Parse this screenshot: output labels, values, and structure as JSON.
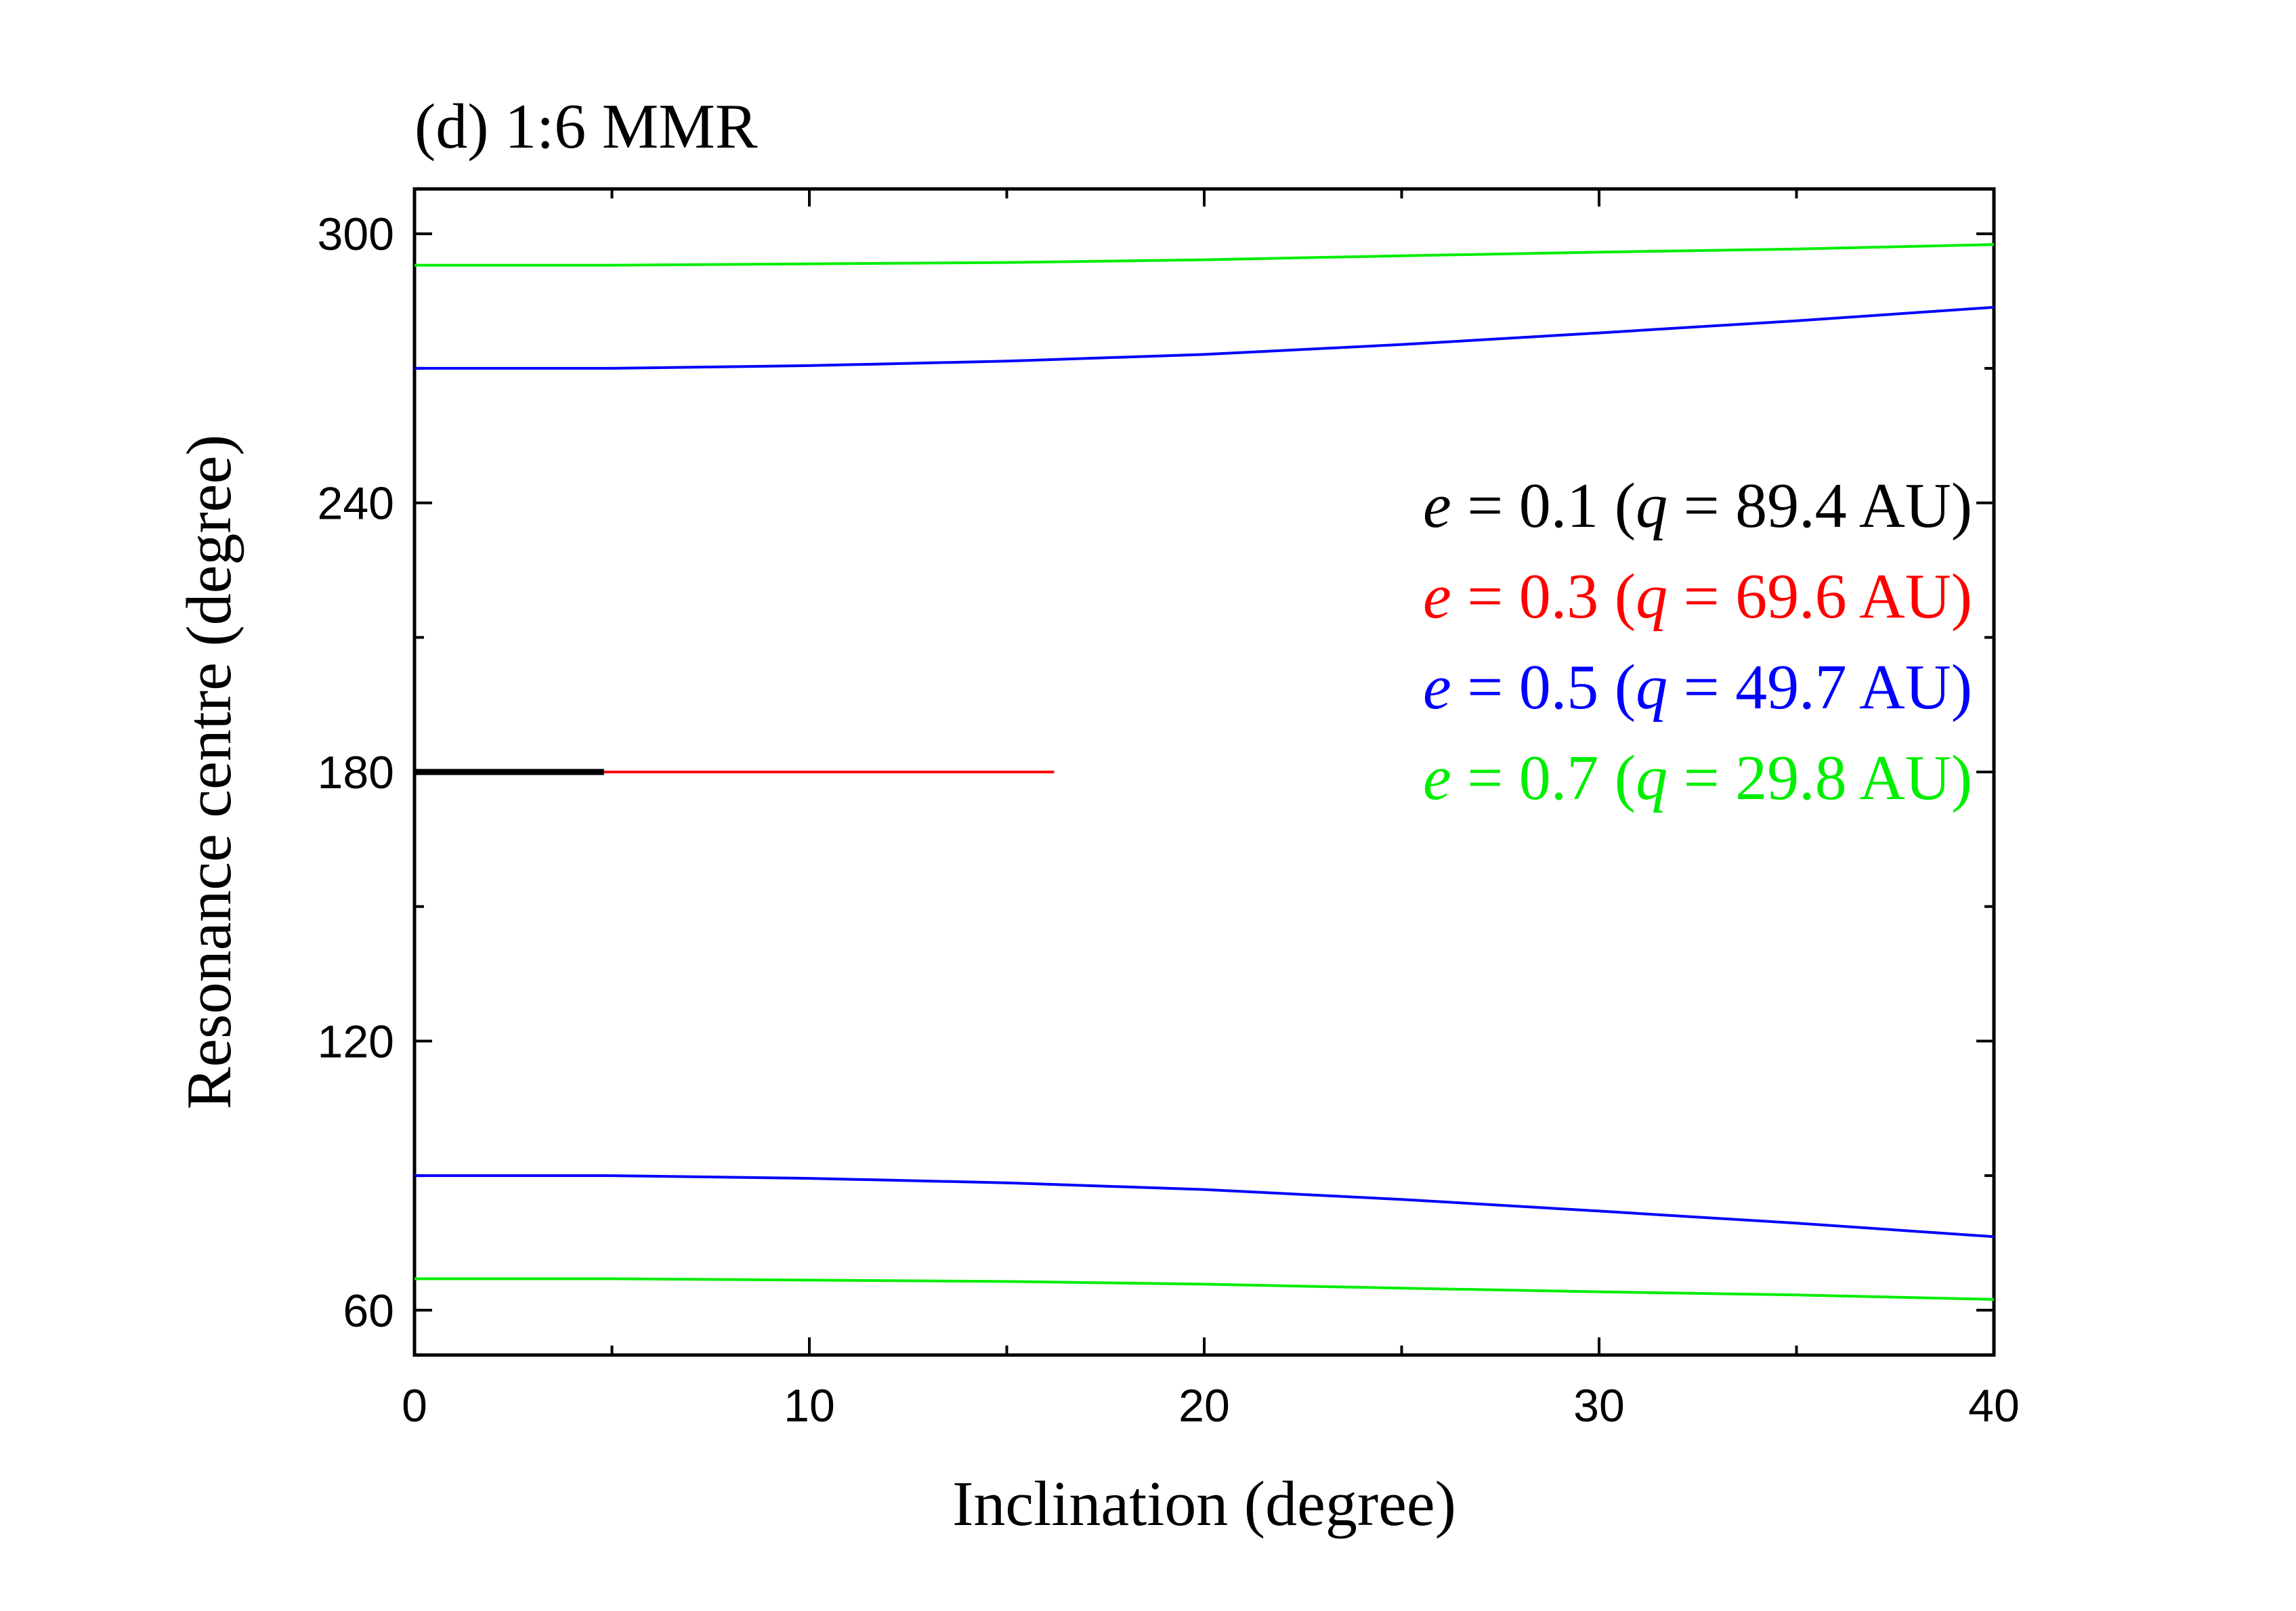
{
  "chart_data": {
    "type": "line",
    "title": "(d) 1:6 MMR",
    "xlabel": "Inclination (degree)",
    "ylabel": "Resonance centre (degree)",
    "xlim": [
      0,
      40
    ],
    "ylim": [
      50,
      310
    ],
    "xticks": [
      0,
      10,
      20,
      30,
      40
    ],
    "xticks_minor": [
      5,
      15,
      25,
      35
    ],
    "yticks": [
      60,
      120,
      180,
      240,
      300
    ],
    "yticks_minor": [
      90,
      150,
      210,
      270
    ],
    "grid": false,
    "legend_position": "right-middle-upper",
    "series": [
      {
        "legend": {
          "e_sym": "e",
          "e_val": " = 0.1 (",
          "q_sym": "q",
          "q_val": " = 89.4 AU)"
        },
        "color": "#000000",
        "lines": [
          {
            "x": [
              0,
              4.8
            ],
            "y": [
              180,
              180
            ]
          }
        ]
      },
      {
        "legend": {
          "e_sym": "e",
          "e_val": " = 0.3 (",
          "q_sym": "q",
          "q_val": " = 69.6 AU)"
        },
        "color": "#ff0000",
        "lines": [
          {
            "x": [
              0,
              16.2
            ],
            "y": [
              180,
              180
            ]
          }
        ]
      },
      {
        "legend": {
          "e_sym": "e",
          "e_val": " = 0.5 (",
          "q_sym": "q",
          "q_val": " = 49.7 AU)"
        },
        "color": "#0000ff",
        "lines": [
          {
            "x": [
              0,
              5,
              10,
              15,
              20,
              25,
              30,
              35,
              40
            ],
            "y": [
              270,
              270,
              270.6,
              271.6,
              273.1,
              275.3,
              277.9,
              280.6,
              283.6
            ]
          },
          {
            "x": [
              0,
              5,
              10,
              15,
              20,
              25,
              30,
              35,
              40
            ],
            "y": [
              90,
              90,
              89.4,
              88.4,
              86.9,
              84.7,
              82.1,
              79.4,
              76.4
            ]
          }
        ]
      },
      {
        "legend": {
          "e_sym": "e",
          "e_val": " = 0.7 (",
          "q_sym": "q",
          "q_val": " = 29.8 AU)"
        },
        "color": "#00ee00",
        "lines": [
          {
            "x": [
              0,
              5,
              10,
              15,
              20,
              25,
              30,
              35,
              40
            ],
            "y": [
              293,
              293,
              293.3,
              293.6,
              294.2,
              295.1,
              295.9,
              296.6,
              297.6
            ]
          },
          {
            "x": [
              0,
              5,
              10,
              15,
              20,
              25,
              30,
              35,
              40
            ],
            "y": [
              67,
              67,
              66.7,
              66.4,
              65.8,
              64.9,
              64.1,
              63.4,
              62.4
            ]
          }
        ]
      }
    ]
  }
}
